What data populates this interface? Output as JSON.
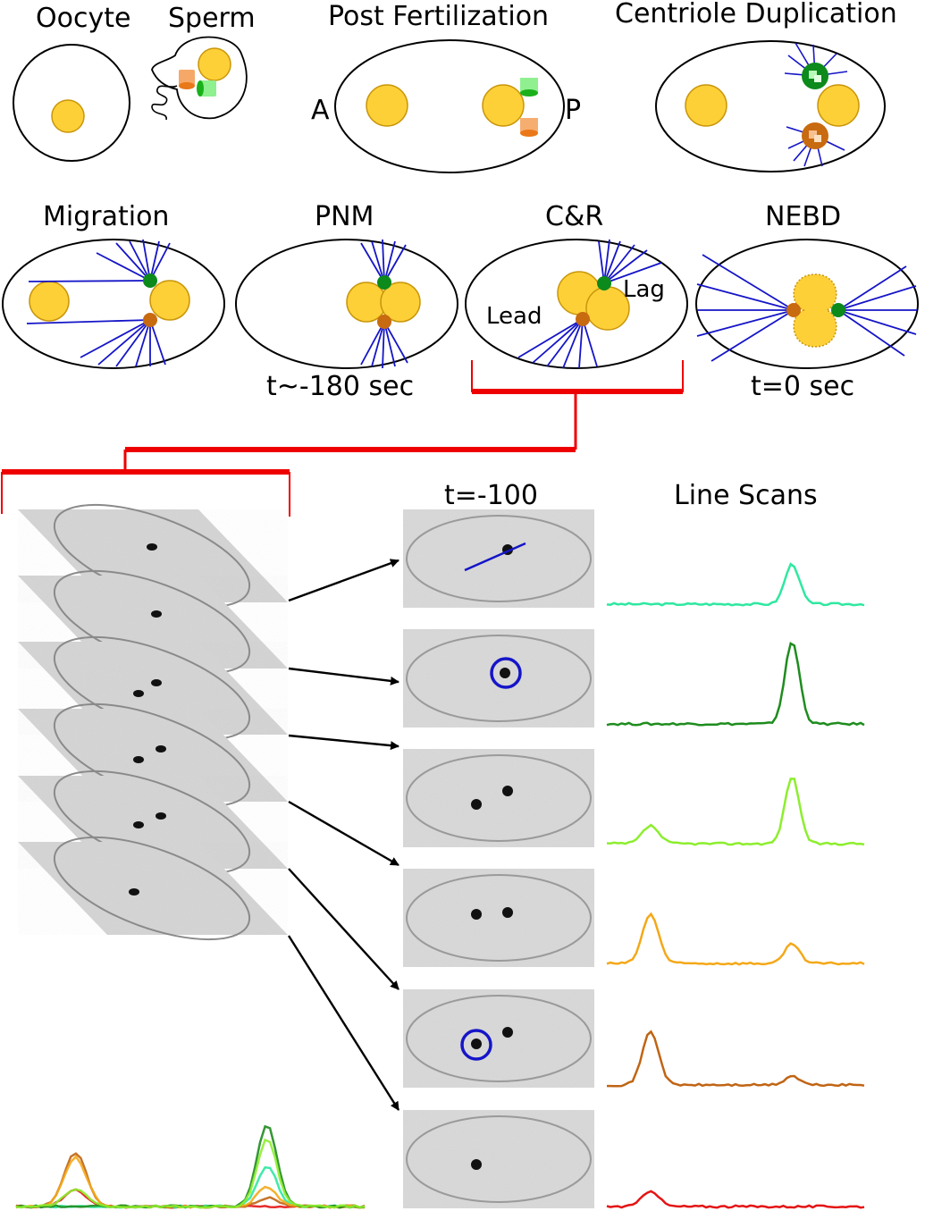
{
  "labels": {
    "oocyte": "Oocyte",
    "sperm": "Sperm",
    "post_fertilization": "Post Fertilization",
    "centriole_duplication": "Centriole Duplication",
    "axis_a": "A",
    "axis_p": "P",
    "migration": "Migration",
    "pnm": "PNM",
    "cr": "C&R",
    "nebd": "NEBD",
    "lead": "Lead",
    "lag": "Lag",
    "time_pnm": "t~-180 sec",
    "time_nebd": "t=0 sec",
    "time_frame": "t=-100",
    "line_scans": "Line Scans"
  },
  "colors": {
    "pronucleus": "#fdd038",
    "pronucleus_stroke": "#c9960a",
    "green_centrosome": "#0c8a1c",
    "orange_centrosome": "#c86a10",
    "microtubule": "#1515c8",
    "bracket": "#ee0000",
    "scan_colors": [
      "#2ee8a0",
      "#1e8c1e",
      "#8cee2e",
      "#f4a818",
      "#c06414",
      "#e41414"
    ]
  },
  "line_scans": [
    {
      "color": "#2ee8a0",
      "lead_peak": 0.0,
      "lag_peak": 0.45
    },
    {
      "color": "#1e8c1e",
      "lead_peak": 0.0,
      "lag_peak": 0.92
    },
    {
      "color": "#8cee2e",
      "lead_peak": 0.2,
      "lag_peak": 0.75
    },
    {
      "color": "#f4a818",
      "lead_peak": 0.55,
      "lag_peak": 0.22
    },
    {
      "color": "#c06414",
      "lead_peak": 0.6,
      "lag_peak": 0.1
    },
    {
      "color": "#e41414",
      "lead_peak": 0.18,
      "lag_peak": 0.0
    }
  ]
}
